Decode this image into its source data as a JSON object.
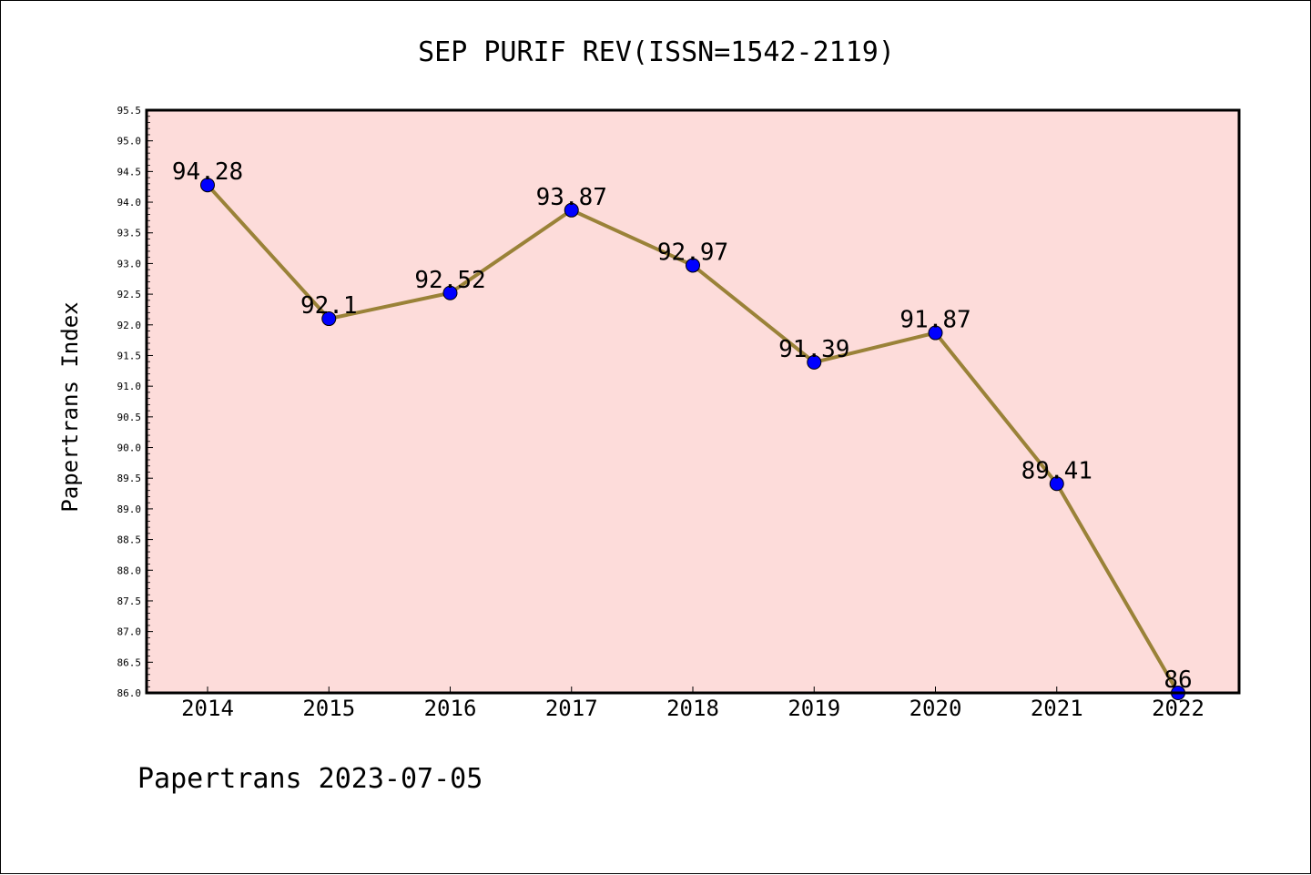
{
  "footer": "Papertrans 2023-07-05",
  "chart_data": {
    "type": "line",
    "title": "SEP PURIF REV(ISSN=1542-2119)",
    "xlabel": "",
    "ylabel": "Papertrans Index",
    "categories": [
      "2014",
      "2015",
      "2016",
      "2017",
      "2018",
      "2019",
      "2020",
      "2021",
      "2022"
    ],
    "values": [
      94.28,
      92.1,
      92.52,
      93.87,
      92.97,
      91.39,
      91.87,
      89.41,
      86
    ],
    "data_labels": [
      "94.28",
      "92.1",
      "92.52",
      "93.87",
      "92.97",
      "91.39",
      "91.87",
      "89.41",
      "86"
    ],
    "ylim": [
      86.0,
      95.5
    ],
    "yticks": [
      "86.0",
      "86.5",
      "87.0",
      "87.5",
      "88.0",
      "88.5",
      "89.0",
      "89.5",
      "90.0",
      "90.5",
      "91.0",
      "91.5",
      "92.0",
      "92.5",
      "93.0",
      "93.5",
      "94.0",
      "94.5",
      "95.0",
      "95.5"
    ],
    "grid": false,
    "colors": {
      "plot_background": "#fddcda",
      "line": "#9a8238",
      "marker": "#0000ff"
    }
  }
}
